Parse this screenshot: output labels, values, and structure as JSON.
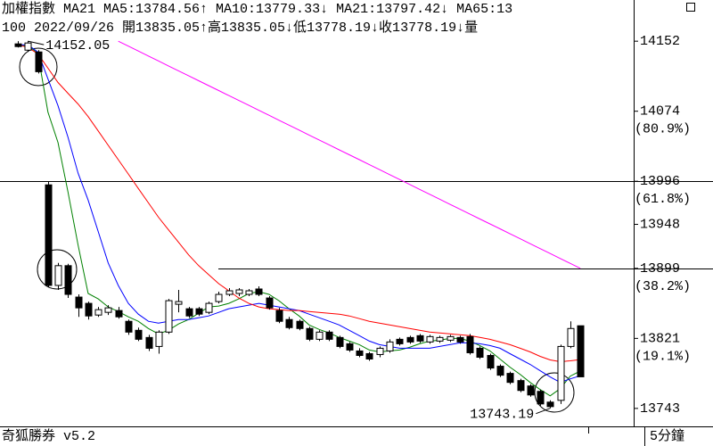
{
  "chart_data": {
    "type": "candlestick",
    "header_items": [
      {
        "text": "加權指數 MA21",
        "color": "#000000"
      },
      {
        "text": "MA5:13784.56↑",
        "color": "#008000"
      },
      {
        "text": "MA10:13779.33↓",
        "color": "#0000ff"
      },
      {
        "text": "MA21:13797.42↓",
        "color": "#ff0000"
      },
      {
        "text": "MA65:13",
        "color": "#ff00ff"
      }
    ],
    "info_line": "100 2022/09/26 開13835.05↑高13835.05↓低13778.19↓收13778.19↓量",
    "footer_left": "奇狐勝券 v5.2",
    "footer_right": "5分鐘",
    "ylim": [
      13723,
      14178
    ],
    "yticks": [
      14152,
      14074,
      13996,
      13948,
      13899,
      13821,
      13743
    ],
    "fib_labels": [
      {
        "value": 14074,
        "label": "(80.9%)"
      },
      {
        "value": 13996,
        "label": "(61.8%)"
      },
      {
        "value": 13899,
        "label": "(38.2%)"
      },
      {
        "value": 13821,
        "label": "(19.1%)"
      }
    ],
    "hlines": [
      13996,
      13899
    ],
    "candles": {
      "open": [
        14149,
        14142,
        14140,
        13992,
        13880,
        13902,
        13867,
        13860,
        13847,
        13850,
        13852,
        13840,
        13830,
        13822,
        13812,
        13828,
        13859,
        13854,
        13854,
        13850,
        13862,
        13870,
        13871,
        13870,
        13876,
        13866,
        13852,
        13842,
        13840,
        13832,
        13820,
        13828,
        13822,
        13815,
        13807,
        13804,
        13803,
        13807,
        13820,
        13822,
        13824,
        13817,
        13818,
        13819,
        13822,
        13823,
        13810,
        13802,
        13790,
        13782,
        13774,
        13768,
        13762,
        13750,
        13752,
        13812,
        13835.05
      ],
      "high": [
        14152,
        14152.05,
        14142,
        13996,
        13905,
        13904,
        13870,
        13862,
        13856,
        13858,
        13856,
        13842,
        13833,
        13825,
        13830,
        13865,
        13875,
        13856,
        13856,
        13862,
        13873,
        13877,
        13877,
        13876,
        13879,
        13868,
        13855,
        13845,
        13842,
        13834,
        13830,
        13830,
        13824,
        13817,
        13810,
        13806,
        13812,
        13820,
        13822,
        13824,
        13826,
        13825,
        13824,
        13825,
        13824,
        13826,
        13812,
        13804,
        13792,
        13784,
        13776,
        13770,
        13764,
        13752,
        13814,
        13840,
        13835.05
      ],
      "low": [
        14145,
        14140,
        14116,
        13878,
        13875,
        13866,
        13845,
        13842,
        13845,
        13847,
        13843,
        13825,
        13818,
        13807,
        13804,
        13826,
        13850,
        13844,
        13846,
        13848,
        13860,
        13868,
        13868,
        13868,
        13868,
        13853,
        13838,
        13831,
        13830,
        13818,
        13818,
        13818,
        13810,
        13806,
        13800,
        13796,
        13800,
        13805,
        13813,
        13815,
        13816,
        13815,
        13816,
        13817,
        13815,
        13803,
        13798,
        13786,
        13778,
        13770,
        13761,
        13756,
        13746,
        13743.19,
        13748,
        13810,
        13778.19
      ],
      "close": [
        14146,
        14150,
        14118,
        13880,
        13902,
        13870,
        13855,
        13846,
        13853,
        13855,
        13845,
        13828,
        13820,
        13810,
        13828,
        13863,
        13862,
        13846,
        13848,
        13860,
        13870,
        13874,
        13875,
        13874,
        13870,
        13855,
        13840,
        13833,
        13832,
        13820,
        13828,
        13820,
        13812,
        13808,
        13802,
        13798,
        13810,
        13817,
        13815,
        13817,
        13818,
        13823,
        13822,
        13823,
        13817,
        13805,
        13800,
        13788,
        13780,
        13772,
        13763,
        13758,
        13748,
        13745,
        13812,
        13832,
        13778.19
      ]
    },
    "series": [
      {
        "name": "MA5",
        "color": "#008000",
        "values": [
          14146,
          14148,
          14138,
          14073,
          14039,
          13984,
          13925,
          13871,
          13865,
          13856,
          13851,
          13845,
          13840,
          13832,
          13826,
          13830,
          13837,
          13842,
          13849,
          13856,
          13857,
          13860,
          13865,
          13871,
          13873,
          13870,
          13863,
          13854,
          13846,
          13836,
          13831,
          13827,
          13822,
          13818,
          13814,
          13808,
          13806,
          13807,
          13808,
          13811,
          13815,
          13818,
          13819,
          13821,
          13821,
          13818,
          13813,
          13807,
          13798,
          13789,
          13781,
          13772,
          13764,
          13757,
          13765,
          13779,
          13784.56
        ]
      },
      {
        "name": "MA10",
        "color": "#0000ff",
        "values": [
          14148,
          14148,
          14140,
          14110,
          14080,
          14045,
          14005,
          13975,
          13940,
          13905,
          13880,
          13860,
          13848,
          13840,
          13838,
          13840,
          13842,
          13842,
          13844,
          13846,
          13850,
          13854,
          13856,
          13858,
          13860,
          13858,
          13856,
          13854,
          13852,
          13848,
          13844,
          13840,
          13836,
          13830,
          13824,
          13818,
          13814,
          13812,
          13810,
          13810,
          13810,
          13810,
          13812,
          13814,
          13816,
          13816,
          13815,
          13813,
          13810,
          13804,
          13798,
          13792,
          13785,
          13778,
          13772,
          13776,
          13779.33
        ]
      },
      {
        "name": "MA21",
        "color": "#ff0000",
        "values": [
          14148,
          14145,
          14138,
          14122,
          14106,
          14094,
          14082,
          14068,
          14052,
          14036,
          14020,
          14004,
          13988,
          13972,
          13956,
          13942,
          13928,
          13914,
          13902,
          13892,
          13882,
          13874,
          13866,
          13860,
          13856,
          13854,
          13853,
          13852,
          13852,
          13851,
          13850,
          13849,
          13848,
          13846,
          13843,
          13840,
          13838,
          13836,
          13834,
          13832,
          13830,
          13828,
          13827,
          13826,
          13825,
          13824,
          13822,
          13820,
          13817,
          13814,
          13810,
          13806,
          13801,
          13797,
          13795,
          13796,
          13797.42
        ]
      },
      {
        "name": "MA65",
        "color": "#ff00ff",
        "values": [
          null,
          null,
          null,
          null,
          null,
          null,
          null,
          null,
          null,
          null,
          14152,
          14146.5,
          14141,
          14135.5,
          14130,
          14124.5,
          14119,
          14113.5,
          14108,
          14102.5,
          14097,
          14091.5,
          14086,
          14080.5,
          14075,
          14069.5,
          14064,
          14058.5,
          14053,
          14047.5,
          14042,
          14036.5,
          14031,
          14025.5,
          14020,
          14014.5,
          14009,
          14003.5,
          13998,
          13992.5,
          13987,
          13981.5,
          13976,
          13970.5,
          13965,
          13959.5,
          13954,
          13948.5,
          13943,
          13937.5,
          13932,
          13926.5,
          13921,
          13915.5,
          13910,
          13904.5,
          13899
        ]
      }
    ],
    "annotations": [
      {
        "text": "14152.05",
        "index": 1
      },
      {
        "text": "13743.19",
        "index": 53
      }
    ]
  }
}
